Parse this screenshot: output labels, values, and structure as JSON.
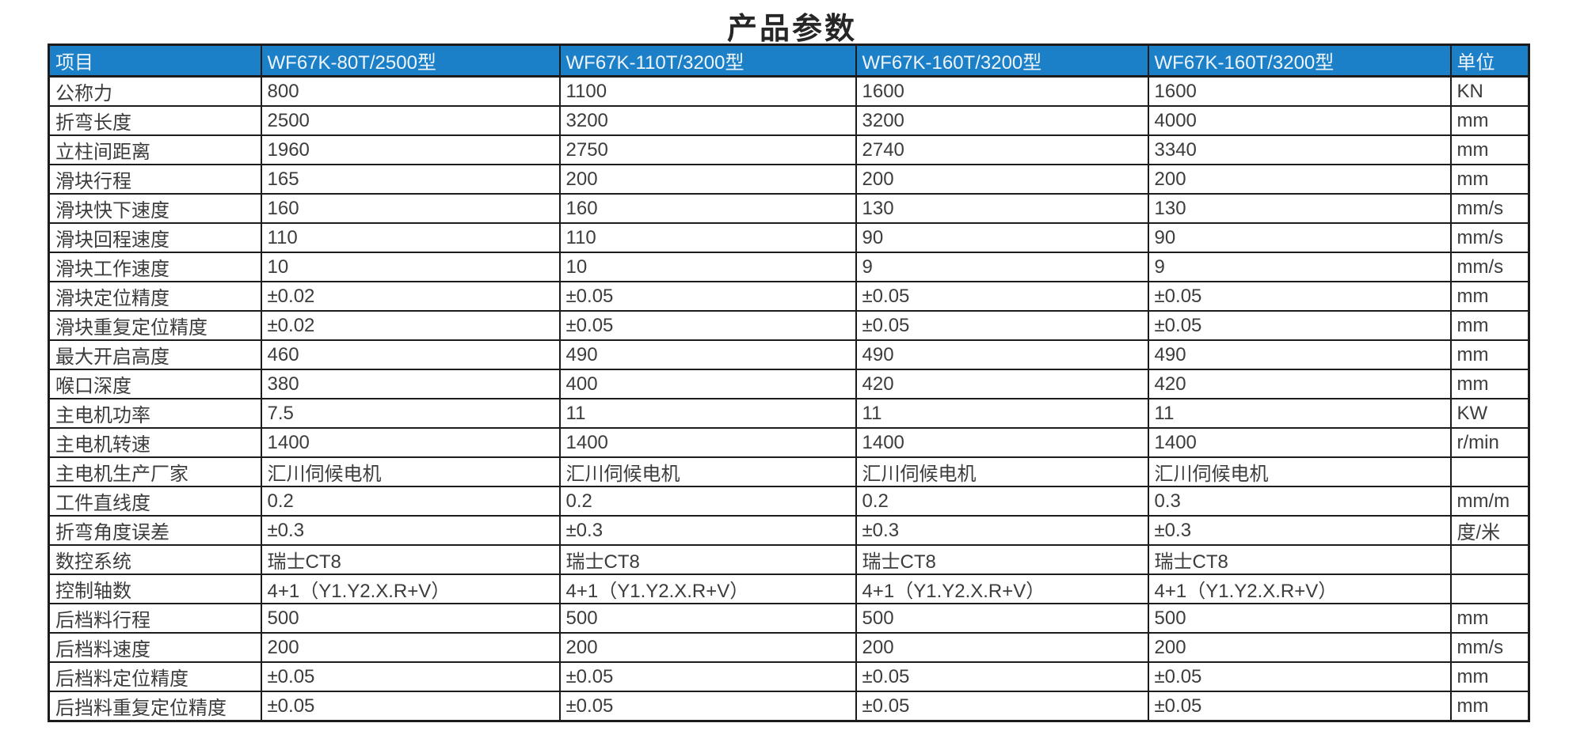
{
  "title": "产品参数",
  "colors": {
    "header_bg": "#1b80c7",
    "header_text": "#eef4fa",
    "body_text": "#3c3c3c",
    "border": "#1c1c1c",
    "page_bg": "#ffffff"
  },
  "table": {
    "headers": [
      "项目",
      "WF67K-80T/2500型",
      "WF67K-110T/3200型",
      "WF67K-160T/3200型",
      "WF67K-160T/3200型",
      "单位"
    ],
    "rows": [
      [
        "公称力",
        "800",
        "1100",
        "1600",
        "1600",
        "KN"
      ],
      [
        "折弯长度",
        "2500",
        "3200",
        "3200",
        "4000",
        "mm"
      ],
      [
        "立柱间距离",
        "1960",
        "2750",
        "2740",
        "3340",
        "mm"
      ],
      [
        "滑块行程",
        "165",
        "200",
        "200",
        "200",
        "mm"
      ],
      [
        "滑块快下速度",
        "160",
        "160",
        "130",
        "130",
        "mm/s"
      ],
      [
        "滑块回程速度",
        "110",
        "110",
        "90",
        "90",
        "mm/s"
      ],
      [
        "滑块工作速度",
        "10",
        "10",
        "9",
        "9",
        "mm/s"
      ],
      [
        "滑块定位精度",
        "±0.02",
        "±0.05",
        "±0.05",
        "±0.05",
        "mm"
      ],
      [
        "滑块重复定位精度",
        "±0.02",
        "±0.05",
        "±0.05",
        "±0.05",
        "mm"
      ],
      [
        "最大开启高度",
        "460",
        "490",
        "490",
        "490",
        "mm"
      ],
      [
        "喉口深度",
        "380",
        "400",
        "420",
        "420",
        "mm"
      ],
      [
        "主电机功率",
        "7.5",
        "11",
        "11",
        "11",
        "KW"
      ],
      [
        "主电机转速",
        "1400",
        "1400",
        "1400",
        "1400",
        "r/min"
      ],
      [
        "主电机生产厂家",
        "汇川伺候电机",
        "汇川伺候电机",
        "汇川伺候电机",
        "汇川伺候电机",
        ""
      ],
      [
        "工件直线度",
        "0.2",
        "0.2",
        "0.2",
        "0.3",
        "mm/m"
      ],
      [
        "折弯角度误差",
        "±0.3",
        "±0.3",
        "±0.3",
        "±0.3",
        "度/米"
      ],
      [
        "数控系统",
        "瑞士CT8",
        "瑞士CT8",
        "瑞士CT8",
        "瑞士CT8",
        ""
      ],
      [
        "控制轴数",
        "4+1（Y1.Y2.X.R+V）",
        "4+1（Y1.Y2.X.R+V）",
        "4+1（Y1.Y2.X.R+V）",
        "4+1（Y1.Y2.X.R+V）",
        ""
      ],
      [
        "后档料行程",
        "500",
        "500",
        "500",
        "500",
        "mm"
      ],
      [
        "后档料速度",
        "200",
        "200",
        "200",
        "200",
        "mm/s"
      ],
      [
        "后档料定位精度",
        "±0.05",
        "±0.05",
        "±0.05",
        "±0.05",
        "mm"
      ],
      [
        "后挡料重复定位精度",
        "±0.05",
        "±0.05",
        "±0.05",
        "±0.05",
        "mm"
      ]
    ]
  }
}
